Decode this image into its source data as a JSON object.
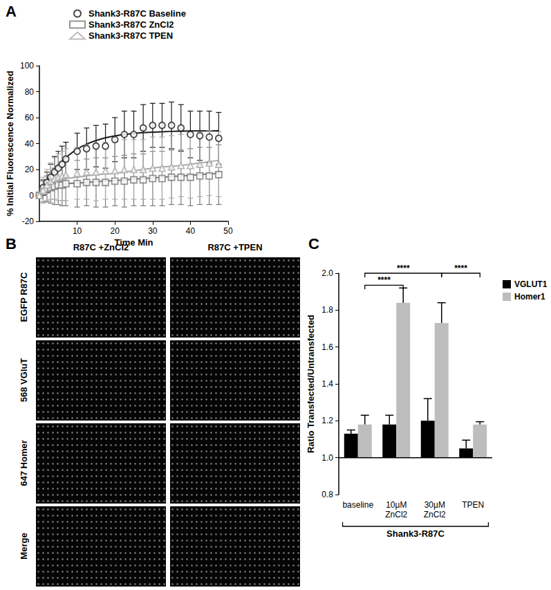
{
  "chart_data": [
    {
      "type": "scatter",
      "title": "A",
      "x_label": "Time Min",
      "y_label": "% Initial Fluorescence Normalized",
      "xlim": [
        0,
        50
      ],
      "xticks": [
        10,
        20,
        30,
        40,
        50
      ],
      "ylim": [
        -20,
        100
      ],
      "yticks": [
        -20,
        0,
        20,
        40,
        60,
        80,
        100
      ],
      "legend": "top",
      "x": [
        0,
        1,
        2,
        3,
        4,
        5,
        6,
        7,
        10,
        12.5,
        15,
        17.5,
        20,
        22.5,
        25,
        27.5,
        30,
        32.5,
        35,
        37.5,
        40,
        42.5,
        45,
        47.5
      ],
      "series": [
        {
          "name": "Shank3-R87C Baseline",
          "color": "#1a1a1a",
          "marker": "circle",
          "values": [
            0,
            6,
            10,
            14,
            18,
            21,
            24,
            28,
            34,
            36,
            38,
            38,
            43,
            47,
            47,
            52,
            54,
            54,
            54,
            52,
            47,
            46,
            45,
            44
          ],
          "errors": [
            0,
            6,
            8,
            10,
            12,
            13,
            14,
            13,
            14,
            16,
            16,
            17,
            17,
            18,
            18,
            18,
            17,
            17,
            18,
            18,
            18,
            19,
            20,
            20
          ],
          "fit": [
            0,
            5.9,
            11.1,
            15.6,
            19.7,
            23.2,
            26.4,
            29.2,
            35.7,
            39.5,
            42.3,
            44.4,
            45.9,
            47.0,
            47.8,
            48.4,
            48.8,
            49.1,
            49.4,
            49.5,
            49.7,
            49.8,
            49.8,
            49.9
          ]
        },
        {
          "name": "Shank3-R87C ZnCl2",
          "color": "#7a7a7a",
          "marker": "square",
          "values": [
            0,
            3,
            5,
            6,
            7,
            8,
            8,
            9,
            9,
            10,
            10,
            10,
            11,
            11,
            12,
            12,
            13,
            13,
            14,
            14,
            14,
            15,
            15,
            16
          ],
          "errors": [
            0,
            8,
            10,
            12,
            14,
            15,
            16,
            17,
            18,
            18,
            19,
            19,
            19,
            20,
            20,
            20,
            21,
            21,
            21,
            21,
            22,
            22,
            22,
            23
          ],
          "fit": [
            0,
            2,
            4,
            5.5,
            7,
            8,
            8.5,
            9,
            9.5,
            10,
            10.5,
            11,
            11.5,
            12,
            12.5,
            13,
            13.5,
            14,
            14.5,
            15,
            15.5,
            16,
            16.5,
            17
          ]
        },
        {
          "name": "Shank3-R87C TPEN",
          "color": "#ababab",
          "marker": "triangle",
          "values": [
            0,
            4,
            8,
            11,
            13,
            14,
            15,
            16,
            17,
            18,
            18,
            19,
            19,
            20,
            20,
            20,
            21,
            21,
            22,
            23,
            23,
            24,
            25,
            24
          ],
          "errors": [
            0,
            10,
            12,
            14,
            16,
            18,
            19,
            20,
            20,
            21,
            22,
            22,
            22,
            23,
            23,
            23,
            24,
            24,
            24,
            24,
            25,
            25,
            25,
            25
          ],
          "fit": [
            0,
            3,
            6,
            8,
            10,
            11,
            12,
            13,
            14,
            15,
            16,
            16.5,
            17,
            18,
            19,
            20,
            21,
            22,
            22.5,
            23,
            24,
            25,
            26,
            27
          ]
        }
      ]
    },
    {
      "type": "bar",
      "title": "C",
      "y_label": "Ratio Transfected/Untransfected",
      "categories": [
        "baseline",
        "10µM ZnCl2",
        "30µM ZnCl2",
        "TPEN"
      ],
      "group_label": "Shank3-R87C",
      "ylim": [
        0.8,
        2.0
      ],
      "yticks": [
        0.8,
        {
          "value": 1,
          "label": "1.0"
        },
        1.2,
        1.4,
        1.6,
        1.8,
        {
          "value": 2,
          "label": "2.0"
        }
      ],
      "bar_base": 1,
      "legend": "top right",
      "series": [
        {
          "name": "VGLUT1",
          "color": "#000000",
          "values": [
            1.13,
            1.18,
            1.2,
            1.05
          ],
          "errors": [
            0.02,
            0.05,
            0.12,
            0.045
          ]
        },
        {
          "name": "Homer1",
          "color": "#bdbdbd",
          "values": [
            1.18,
            1.84,
            1.73,
            1.18
          ],
          "errors": [
            0.05,
            0.08,
            0.11,
            0.015
          ]
        }
      ],
      "annotations": [
        {
          "from": 0,
          "to": 1,
          "y": 1.935,
          "text": "****"
        },
        {
          "from": 0,
          "to": 2,
          "y": 2.0,
          "text": "****"
        },
        {
          "from": 2,
          "to": 3,
          "y": 2.0,
          "text": "****"
        }
      ]
    }
  ],
  "panel_b": {
    "title": "B",
    "columns": [
      "R87C +ZnCl2",
      "R87C +TPEN"
    ],
    "rows": [
      "EGFP R87C",
      "568 VGluT",
      "647 Homer",
      "Merge"
    ]
  }
}
